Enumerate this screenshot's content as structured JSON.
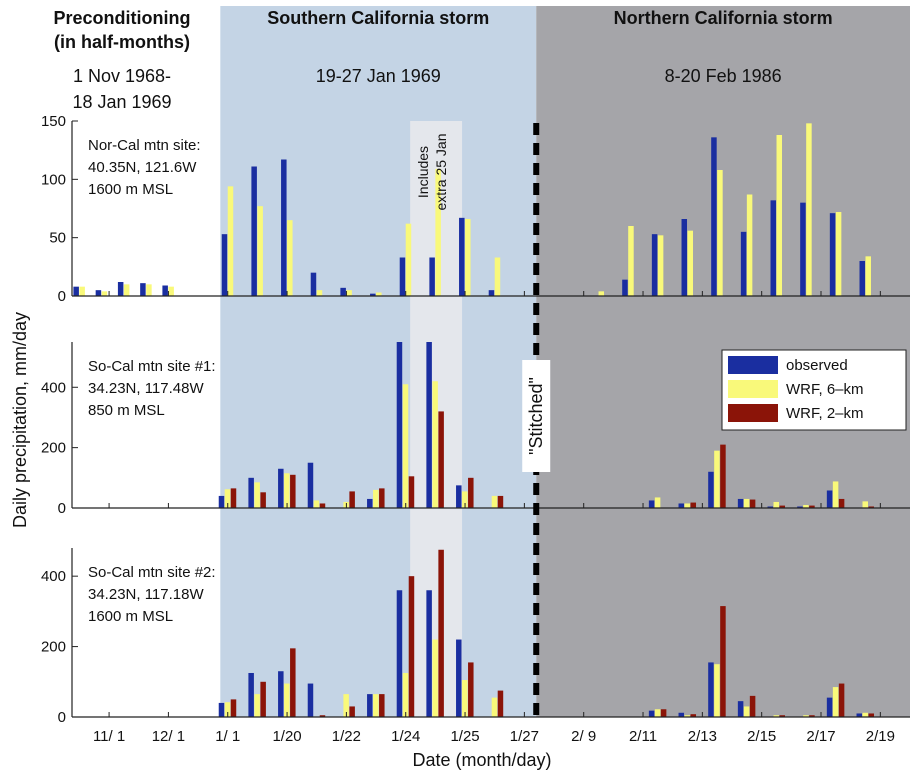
{
  "chart_data": {
    "type": "bar",
    "ylabel": "Daily precipitation, mm/day",
    "xlabel": "Date (month/day)",
    "headers": [
      {
        "title_lines": [
          "Preconditioning",
          "(in half-months)"
        ],
        "date_lines": [
          "1 Nov 1968-",
          "18 Jan 1969"
        ]
      },
      {
        "title_lines": [
          "Southern California storm"
        ],
        "date_lines": [
          "19-27 Jan 1969"
        ]
      },
      {
        "title_lines": [
          "Northern California storm"
        ],
        "date_lines": [
          "8-20 Feb 1986"
        ]
      }
    ],
    "x_tick_labels": [
      "11/ 1",
      "12/ 1",
      "1/ 1",
      "1/20",
      "1/22",
      "1/24",
      "1/25",
      "1/27",
      "2/ 9",
      "2/11",
      "2/13",
      "2/15",
      "2/17",
      "2/19"
    ],
    "x_tick_positions": [
      3,
      7,
      11,
      15,
      19,
      23,
      27,
      31,
      35,
      39,
      43,
      47,
      51,
      55
    ],
    "x_range": [
      0.5,
      57
    ],
    "regions": {
      "south_storm": [
        10.5,
        31.8
      ],
      "north_storm": [
        31.8,
        57
      ],
      "highlight_25jan": [
        23.3,
        26.8
      ],
      "stitch_line": 31.8
    },
    "annotations": {
      "highlight": [
        "Includes",
        "extra 25 Jan"
      ],
      "stitch": "\"Stitched\""
    },
    "legend": {
      "placement": "right",
      "entries": [
        {
          "name": "observed",
          "color": "#1a2ea0"
        },
        {
          "name": "WRF, 6–km",
          "color": "#f9f97a"
        },
        {
          "name": "WRF, 2–km",
          "color": "#8b1408"
        }
      ]
    },
    "panels": [
      {
        "site_lines": [
          "Nor-Cal mtn site:",
          "40.35N, 121.6W",
          "1600 m MSL"
        ],
        "ylim": [
          0,
          150
        ],
        "yticks": [
          0,
          50,
          100,
          150
        ],
        "has_wrf2": false,
        "bars": [
          [
            1,
            8,
            8
          ],
          [
            2.5,
            5,
            4
          ],
          [
            4,
            12,
            10
          ],
          [
            5.5,
            11,
            10
          ],
          [
            7,
            9,
            8
          ],
          [
            11,
            53,
            94
          ],
          [
            13,
            111,
            77
          ],
          [
            15,
            117,
            65
          ],
          [
            17,
            20,
            5
          ],
          [
            19,
            7,
            5
          ],
          [
            21,
            2,
            3
          ],
          [
            23,
            33,
            62
          ],
          [
            25,
            33,
            109
          ],
          [
            27,
            67,
            66
          ],
          [
            29,
            5,
            33
          ],
          [
            36,
            0,
            4
          ],
          [
            38,
            14,
            60
          ],
          [
            40,
            53,
            52
          ],
          [
            42,
            66,
            56
          ],
          [
            44,
            136,
            108
          ],
          [
            46,
            55,
            87
          ],
          [
            48,
            82,
            138
          ],
          [
            50,
            80,
            148
          ],
          [
            52,
            71,
            72
          ],
          [
            54,
            30,
            34
          ]
        ]
      },
      {
        "site_lines": [
          "So-Cal mtn site #1:",
          "34.23N, 117.48W",
          "850 m MSL"
        ],
        "ylim": [
          0,
          550
        ],
        "yticks": [
          0,
          200,
          400
        ],
        "has_wrf2": true,
        "bars": [
          [
            11,
            40,
            62,
            65
          ],
          [
            13,
            100,
            85,
            52
          ],
          [
            15,
            130,
            115,
            110
          ],
          [
            17,
            150,
            25,
            15
          ],
          [
            19,
            0,
            20,
            55
          ],
          [
            21,
            30,
            60,
            65
          ],
          [
            23,
            550,
            410,
            105
          ],
          [
            25,
            550,
            420,
            320
          ],
          [
            27,
            75,
            55,
            100
          ],
          [
            29,
            0,
            40,
            40
          ],
          [
            40,
            25,
            35,
            0
          ],
          [
            42,
            15,
            15,
            18
          ],
          [
            44,
            120,
            190,
            210
          ],
          [
            46,
            30,
            30,
            28
          ],
          [
            48,
            5,
            20,
            8
          ],
          [
            50,
            5,
            10,
            8
          ],
          [
            52,
            58,
            88,
            30
          ],
          [
            54,
            0,
            22,
            5
          ]
        ]
      },
      {
        "site_lines": [
          "So-Cal mtn site #2:",
          "34.23N, 117.18W",
          "1600 m MSL"
        ],
        "ylim": [
          0,
          480
        ],
        "yticks": [
          0,
          200,
          400
        ],
        "has_wrf2": true,
        "bars": [
          [
            11,
            40,
            42,
            50
          ],
          [
            13,
            125,
            65,
            100
          ],
          [
            15,
            130,
            95,
            195
          ],
          [
            17,
            95,
            0,
            5
          ],
          [
            19,
            0,
            65,
            30
          ],
          [
            21,
            65,
            65,
            65
          ],
          [
            23,
            360,
            125,
            400
          ],
          [
            25,
            360,
            220,
            475
          ],
          [
            27,
            220,
            105,
            155
          ],
          [
            29,
            0,
            55,
            75
          ],
          [
            40,
            18,
            22,
            22
          ],
          [
            42,
            12,
            5,
            8
          ],
          [
            44,
            155,
            150,
            315
          ],
          [
            46,
            45,
            30,
            60
          ],
          [
            48,
            0,
            5,
            5
          ],
          [
            50,
            0,
            5,
            5
          ],
          [
            52,
            55,
            85,
            95
          ],
          [
            54,
            10,
            12,
            10
          ]
        ]
      }
    ]
  }
}
